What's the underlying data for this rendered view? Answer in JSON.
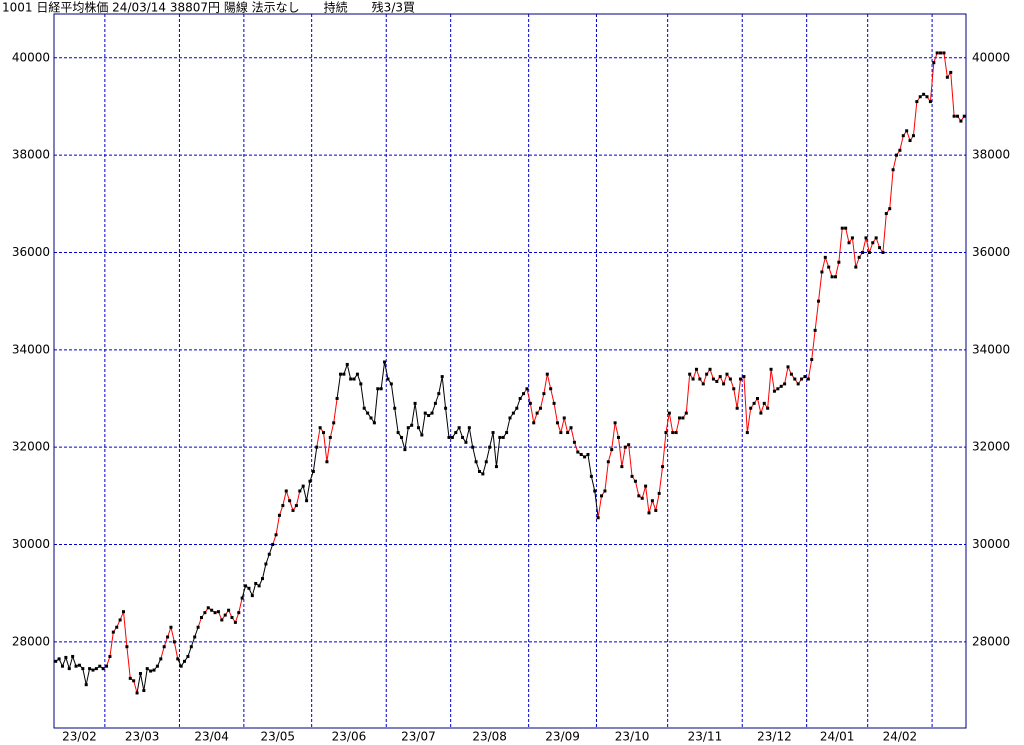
{
  "chart_data": {
    "type": "line",
    "title": "1001 日経平均株価 24/03/14 38807円 陽線 法示なし　　持続　　残3/3買",
    "categories": [
      "23/02",
      "23/03",
      "23/04",
      "23/05",
      "23/06",
      "23/07",
      "23/08",
      "23/09",
      "23/10",
      "23/11",
      "23/12",
      "24/01",
      "24/02",
      null
    ],
    "values": [
      [
        27600,
        27650,
        27500,
        27680,
        27450,
        27700,
        27500,
        27520,
        27450,
        27120,
        27450,
        27420,
        27450,
        27500,
        27450
      ],
      [
        27500,
        27700,
        28200,
        28300,
        28450,
        28620,
        27900,
        27250,
        27200,
        26950,
        27350,
        27000,
        27450,
        27400,
        27420,
        27500,
        27650,
        27900,
        28100,
        28300,
        28000,
        27650
      ],
      [
        27500,
        27600,
        27700,
        27900,
        28100,
        28300,
        28500,
        28600,
        28700,
        28650,
        28600,
        28620,
        28450,
        28550,
        28650,
        28500,
        28400,
        28600,
        28900
      ],
      [
        29150,
        29100,
        28950,
        29200,
        29150,
        29300,
        29600,
        29800,
        30000,
        30200,
        30600,
        30800,
        31100,
        30900,
        30700,
        30800,
        31100,
        31200,
        30900,
        31300
      ],
      [
        31500,
        32000,
        32400,
        32300,
        31700,
        32200,
        32500,
        33000,
        33500,
        33500,
        33700,
        33400,
        33400,
        33500,
        33300,
        32800,
        32700,
        32600,
        32500,
        33200,
        33200,
        33750
      ],
      [
        33400,
        33300,
        32800,
        32300,
        32200,
        31950,
        32400,
        32450,
        32900,
        32400,
        32250,
        32700,
        32650,
        32700,
        32900,
        33100,
        33450,
        32800,
        32200
      ],
      [
        32200,
        32300,
        32400,
        32200,
        32100,
        32400,
        32000,
        31700,
        31500,
        31450,
        31700,
        32000,
        32300,
        31600,
        32200,
        32200,
        32300,
        32600,
        32700,
        32800,
        33000,
        33100,
        33200
      ],
      [
        32900,
        32500,
        32700,
        32800,
        33100,
        33500,
        33200,
        32900,
        32500,
        32300,
        32600,
        32300,
        32400,
        32100,
        31900,
        31850,
        31800,
        31850,
        31400,
        31100
      ],
      [
        30550,
        31000,
        31100,
        31700,
        31950,
        32500,
        32200,
        31600,
        32000,
        32050,
        31400,
        31300,
        31000,
        30950,
        31200,
        30650,
        30900,
        30700,
        31050,
        31600,
        32300
      ],
      [
        32700,
        32300,
        32300,
        32600,
        32600,
        32700,
        33500,
        33400,
        33600,
        33400,
        33300,
        33500,
        33600,
        33400,
        33350,
        33450,
        33300,
        33500,
        33400,
        33200,
        32800,
        33400
      ],
      [
        33450,
        32300,
        32800,
        32900,
        33000,
        32700,
        32900,
        32800,
        33600,
        33150,
        33200,
        33250,
        33300,
        33650,
        33500,
        33400,
        33300,
        33400,
        33450
      ],
      [
        33400,
        33800,
        34400,
        35000,
        35600,
        35900,
        35700,
        35500,
        35500,
        35800,
        36500,
        36500,
        36200,
        36300,
        35700,
        35900,
        36000,
        36300
      ],
      [
        36000,
        36200,
        36300,
        36100,
        36000,
        36800,
        36900,
        37700,
        38000,
        38100,
        38400,
        38500,
        38300,
        38400,
        39100,
        39200,
        39250,
        39200,
        39100
      ],
      [
        39900,
        40100,
        40100,
        40100,
        39600,
        39700,
        38800,
        38800,
        38700,
        38800
      ]
    ],
    "line_colors": [
      [
        "black",
        "black",
        "black",
        "black",
        "black",
        "black",
        "black",
        "black",
        "black",
        "black",
        "black",
        "black",
        "black",
        "black",
        "black"
      ],
      [
        "red",
        "red",
        "red",
        "red",
        "red",
        "red",
        "red",
        "red",
        "red",
        "red",
        "black",
        "black",
        "black",
        "black",
        "black",
        "black",
        "black",
        "red",
        "red",
        "red",
        "red",
        "red"
      ],
      [
        "black",
        "black",
        "black",
        "black",
        "black",
        "black",
        "red",
        "red",
        "red",
        "red",
        "red",
        "red",
        "red",
        "red",
        "red",
        "red",
        "red",
        "red",
        "red"
      ],
      [
        "black",
        "black",
        "black",
        "black",
        "black",
        "black",
        "black",
        "black",
        "black",
        "red",
        "red",
        "red",
        "red",
        "red",
        "red",
        "red",
        "red",
        "black",
        "black",
        "black"
      ],
      [
        "black",
        "black",
        "red",
        "red",
        "red",
        "red",
        "red",
        "red",
        "black",
        "black",
        "black",
        "black",
        "black",
        "black",
        "black",
        "black",
        "black",
        "black",
        "black",
        "black",
        "black",
        "black"
      ],
      [
        "black",
        "black",
        "black",
        "black",
        "black",
        "black",
        "black",
        "black",
        "black",
        "black",
        "black",
        "black",
        "black",
        "black",
        "black",
        "black",
        "black",
        "black",
        "black"
      ],
      [
        "black",
        "black",
        "black",
        "black",
        "black",
        "black",
        "black",
        "black",
        "black",
        "black",
        "black",
        "black",
        "black",
        "black",
        "black",
        "black",
        "black",
        "black",
        "black",
        "black",
        "black",
        "black",
        "red"
      ],
      [
        "red",
        "red",
        "red",
        "red",
        "red",
        "red",
        "red",
        "red",
        "red",
        "red",
        "red",
        "red",
        "red",
        "red",
        "red",
        "red",
        "black",
        "black",
        "black",
        "black"
      ],
      [
        "black",
        "red",
        "red",
        "red",
        "red",
        "red",
        "red",
        "red",
        "red",
        "red",
        "red",
        "red",
        "red",
        "red",
        "red",
        "red",
        "red",
        "red",
        "red",
        "red",
        "red"
      ],
      [
        "red",
        "red",
        "red",
        "red",
        "red",
        "red",
        "red",
        "red",
        "red",
        "red",
        "red",
        "red",
        "red",
        "red",
        "red",
        "red",
        "red",
        "red",
        "red",
        "red",
        "red",
        "red"
      ],
      [
        "red",
        "red",
        "red",
        "red",
        "red",
        "red",
        "red",
        "red",
        "red",
        "red",
        "red",
        "red",
        "red",
        "red",
        "red",
        "red",
        "red",
        "red",
        "red"
      ],
      [
        "red",
        "red",
        "red",
        "red",
        "red",
        "red",
        "red",
        "red",
        "red",
        "red",
        "red",
        "red",
        "red",
        "red",
        "red",
        "red",
        "red",
        "red"
      ],
      [
        "red",
        "red",
        "red",
        "red",
        "red",
        "red",
        "red",
        "red",
        "red",
        "red",
        "red",
        "red",
        "red",
        "red",
        "red",
        "red",
        "red",
        "red",
        "red"
      ],
      [
        "red",
        "red",
        "red",
        "red",
        "red",
        "red",
        "red",
        "red",
        "red",
        "red"
      ]
    ],
    "marker_color": "#000000",
    "ylim": [
      26230,
      40900
    ],
    "yticks": [
      28000,
      30000,
      32000,
      34000,
      36000,
      38000,
      40000
    ],
    "grid": true,
    "grid_color": "#0000cc",
    "axis_color": "#000080"
  }
}
